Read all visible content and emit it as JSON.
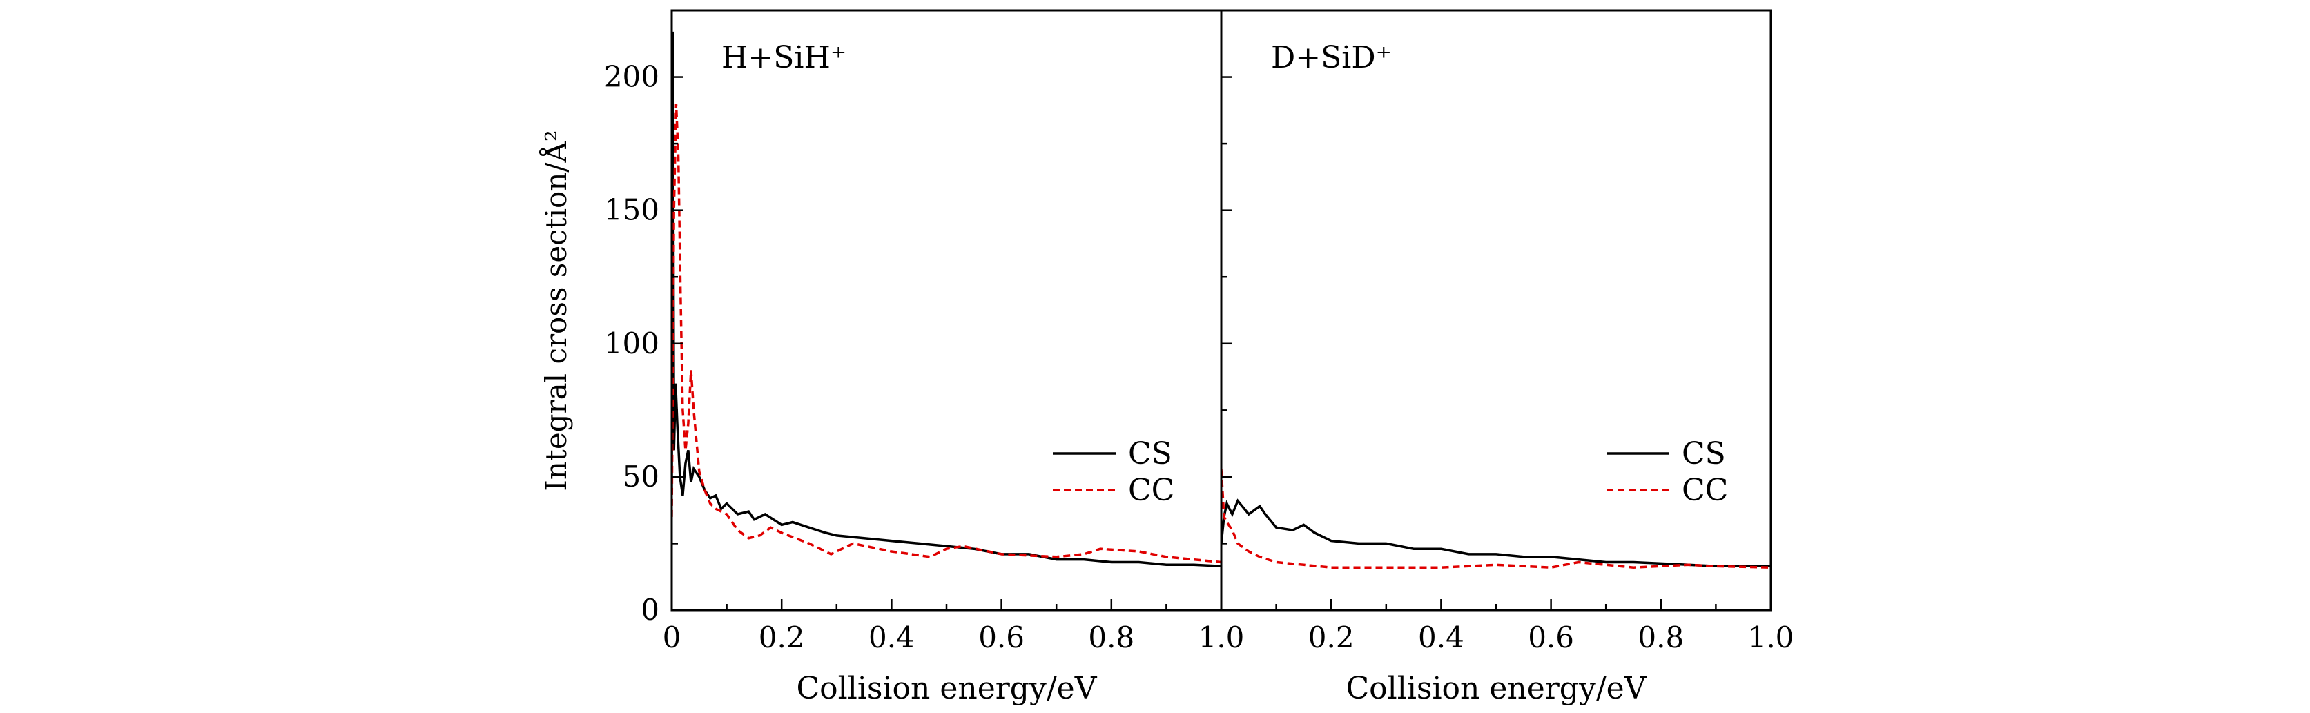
{
  "chart_data": [
    {
      "type": "line",
      "title": "H+SiH⁺",
      "xlabel": "Collision energy/eV",
      "ylabel": "Integral cross section/Å²",
      "xlim": [
        0,
        1.0
      ],
      "ylim": [
        0,
        225
      ],
      "xticks": [
        "0",
        "0.2",
        "0.4",
        "0.6",
        "0.8",
        "1.0"
      ],
      "yticks": [
        "0",
        "50",
        "100",
        "150",
        "200"
      ],
      "legend": "right-middle",
      "series": [
        {
          "name": "CS",
          "color": "#000000",
          "dash": "solid",
          "x": [
            0,
            0.002,
            0.004,
            0.007,
            0.01,
            0.015,
            0.02,
            0.025,
            0.03,
            0.035,
            0.04,
            0.05,
            0.06,
            0.07,
            0.08,
            0.09,
            0.1,
            0.12,
            0.14,
            0.15,
            0.17,
            0.2,
            0.22,
            0.25,
            0.28,
            0.3,
            0.35,
            0.4,
            0.45,
            0.5,
            0.55,
            0.6,
            0.65,
            0.7,
            0.75,
            0.8,
            0.85,
            0.9,
            0.95,
            1.0
          ],
          "y": [
            45,
            217,
            60,
            85,
            70,
            50,
            43,
            55,
            60,
            48,
            53,
            50,
            45,
            42,
            43,
            38,
            40,
            36,
            37,
            34,
            36,
            32,
            33,
            31,
            29,
            28,
            27,
            26,
            25,
            24,
            23,
            21,
            21,
            19,
            19,
            18,
            18,
            17,
            17,
            16.5
          ]
        },
        {
          "name": "CC",
          "color": "#e00000",
          "dash": "dashed",
          "x": [
            0,
            0.004,
            0.008,
            0.012,
            0.016,
            0.02,
            0.025,
            0.03,
            0.035,
            0.04,
            0.05,
            0.06,
            0.07,
            0.08,
            0.1,
            0.12,
            0.14,
            0.16,
            0.18,
            0.2,
            0.25,
            0.29,
            0.33,
            0.4,
            0.47,
            0.5,
            0.53,
            0.6,
            0.7,
            0.75,
            0.78,
            0.85,
            0.9,
            1.0
          ],
          "y": [
            35,
            150,
            190,
            170,
            120,
            75,
            60,
            70,
            90,
            75,
            52,
            45,
            40,
            38,
            36,
            30,
            27,
            28,
            31,
            29,
            25,
            21,
            25,
            22,
            20,
            23,
            24,
            21,
            20,
            21,
            23,
            22,
            20,
            18
          ]
        }
      ]
    },
    {
      "type": "line",
      "title": "D+SiD⁺",
      "xlabel": "Collision energy/eV",
      "xlim": [
        0,
        1.0
      ],
      "ylim": [
        0,
        225
      ],
      "xticks": [
        "0.2",
        "0.4",
        "0.6",
        "0.8",
        "1.0"
      ],
      "legend": "right-middle",
      "series": [
        {
          "name": "CS",
          "color": "#000000",
          "dash": "solid",
          "x": [
            0,
            0.005,
            0.01,
            0.02,
            0.03,
            0.05,
            0.07,
            0.08,
            0.1,
            0.13,
            0.15,
            0.17,
            0.2,
            0.25,
            0.3,
            0.35,
            0.4,
            0.45,
            0.5,
            0.55,
            0.6,
            0.65,
            0.7,
            0.75,
            0.8,
            0.85,
            0.9,
            0.95,
            1.0
          ],
          "y": [
            25,
            35,
            40,
            36,
            41,
            36,
            39,
            36,
            31,
            30,
            32,
            29,
            26,
            25,
            25,
            23,
            23,
            21,
            21,
            20,
            20,
            19,
            18,
            18,
            17.5,
            17,
            16.5,
            16.5,
            16.5
          ]
        },
        {
          "name": "CC",
          "color": "#e00000",
          "dash": "dashed",
          "x": [
            0,
            0.005,
            0.01,
            0.02,
            0.03,
            0.05,
            0.07,
            0.1,
            0.15,
            0.2,
            0.3,
            0.4,
            0.5,
            0.6,
            0.65,
            0.7,
            0.75,
            0.8,
            0.85,
            0.9,
            1.0
          ],
          "y": [
            53,
            35,
            33,
            30,
            25,
            22,
            20,
            18,
            17,
            16,
            16,
            16,
            17,
            16,
            18,
            17,
            16,
            16.5,
            17,
            16.5,
            16
          ]
        }
      ]
    }
  ]
}
